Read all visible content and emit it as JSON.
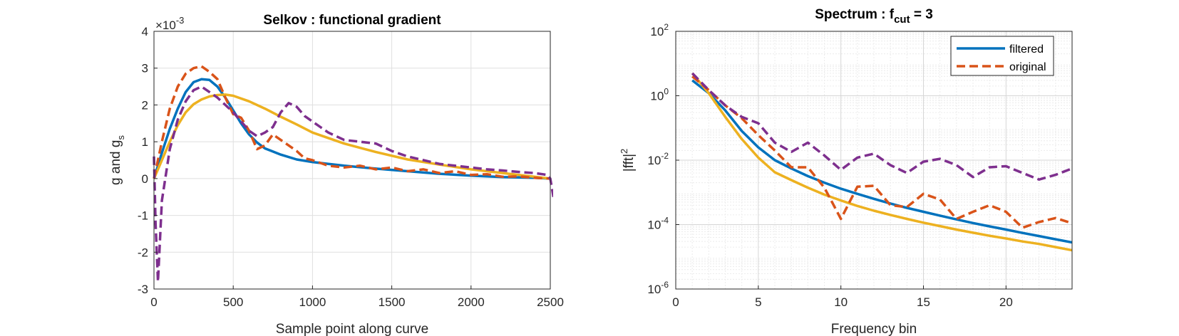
{
  "chart_data": [
    {
      "type": "line",
      "title": "Selkov : functional gradient",
      "xlabel": "Sample point along curve",
      "ylabel_main": "g and g",
      "ylabel_sub": "s",
      "exponent_prefix": "×10",
      "exponent": "-3",
      "xlim": [
        0,
        2500
      ],
      "ylim": [
        -3,
        4
      ],
      "xticks": [
        0,
        500,
        1000,
        1500,
        2000,
        2500
      ],
      "yticks": [
        -3,
        -2,
        -1,
        0,
        1,
        2,
        3,
        4
      ],
      "grid": true,
      "series": [
        {
          "color": "#0072BD",
          "style": "solid",
          "width": 3.5,
          "x": [
            0,
            50,
            100,
            150,
            200,
            250,
            300,
            350,
            400,
            450,
            500,
            550,
            600,
            650,
            700,
            800,
            900,
            1000,
            1100,
            1200,
            1400,
            1600,
            1800,
            2000,
            2200,
            2400,
            2450,
            2500
          ],
          "y": [
            0.0,
            0.7,
            1.35,
            1.9,
            2.35,
            2.62,
            2.7,
            2.68,
            2.5,
            2.2,
            1.85,
            1.5,
            1.2,
            0.98,
            0.82,
            0.65,
            0.52,
            0.45,
            0.4,
            0.35,
            0.27,
            0.2,
            0.13,
            0.08,
            0.04,
            0.02,
            0.01,
            0.0
          ]
        },
        {
          "color": "#EDB120",
          "style": "solid",
          "width": 3.5,
          "x": [
            0,
            50,
            100,
            150,
            200,
            250,
            300,
            350,
            400,
            450,
            500,
            600,
            700,
            800,
            900,
            1000,
            1200,
            1400,
            1600,
            1800,
            2000,
            2200,
            2400,
            2500
          ],
          "y": [
            0.0,
            0.5,
            1.0,
            1.45,
            1.8,
            2.02,
            2.15,
            2.23,
            2.27,
            2.28,
            2.25,
            2.1,
            1.9,
            1.68,
            1.47,
            1.25,
            0.95,
            0.72,
            0.52,
            0.38,
            0.25,
            0.15,
            0.05,
            0.0
          ]
        },
        {
          "color": "#D95319",
          "style": "dashed",
          "width": 3.5,
          "x": [
            0,
            50,
            100,
            150,
            200,
            250,
            300,
            350,
            400,
            450,
            500,
            550,
            600,
            650,
            700,
            750,
            800,
            850,
            900,
            950,
            1000,
            1100,
            1200,
            1300,
            1400,
            1500,
            1600,
            1700,
            1800,
            1900,
            2000,
            2100,
            2200,
            2300,
            2400,
            2500
          ],
          "y": [
            0.0,
            1.0,
            1.9,
            2.5,
            2.85,
            3.0,
            3.05,
            2.9,
            2.7,
            2.2,
            1.75,
            1.65,
            1.3,
            0.8,
            0.9,
            1.2,
            1.05,
            0.9,
            0.75,
            0.55,
            0.5,
            0.35,
            0.3,
            0.35,
            0.25,
            0.3,
            0.2,
            0.25,
            0.15,
            0.2,
            0.1,
            0.12,
            0.05,
            0.06,
            0.02,
            0.0
          ]
        },
        {
          "color": "#7E2F8E",
          "style": "dashed",
          "width": 3.5,
          "x": [
            0,
            10,
            25,
            50,
            100,
            150,
            200,
            250,
            300,
            350,
            400,
            450,
            500,
            550,
            600,
            650,
            700,
            750,
            800,
            850,
            900,
            950,
            1000,
            1050,
            1100,
            1200,
            1300,
            1400,
            1500,
            1600,
            1700,
            1800,
            1900,
            2000,
            2100,
            2200,
            2300,
            2400,
            2480,
            2500,
            2520
          ],
          "y": [
            0.6,
            -1.2,
            -2.8,
            -0.6,
            0.8,
            1.6,
            2.1,
            2.4,
            2.5,
            2.35,
            2.2,
            2.0,
            1.8,
            1.55,
            1.3,
            1.15,
            1.25,
            1.4,
            1.8,
            2.05,
            1.95,
            1.7,
            1.55,
            1.4,
            1.25,
            1.05,
            1.0,
            0.95,
            0.75,
            0.6,
            0.5,
            0.4,
            0.35,
            0.3,
            0.25,
            0.22,
            0.18,
            0.15,
            0.1,
            0.0,
            -0.5
          ]
        }
      ]
    },
    {
      "type": "line",
      "title_main": "Spectrum : f",
      "title_sub": "cut",
      "title_rest": " = 3",
      "xlabel": "Frequency bin",
      "ylabel_main": "|fft|",
      "ylabel_sup": "2",
      "xlim": [
        0,
        24
      ],
      "ylim": [
        1e-06,
        100
      ],
      "yscale": "log",
      "xticks": [
        0,
        5,
        10,
        15,
        20
      ],
      "ytick_exponents": [
        2,
        0,
        -2,
        -4,
        -6
      ],
      "grid": true,
      "legend_position": "top-right",
      "legend": [
        {
          "label": "filtered",
          "color": "#0072BD",
          "style": "solid"
        },
        {
          "label": "original",
          "color": "#D95319",
          "style": "dashed"
        }
      ],
      "series": [
        {
          "color": "#0072BD",
          "style": "solid",
          "width": 3.5,
          "x": [
            1,
            2,
            3,
            4,
            5,
            6,
            7,
            8,
            9,
            10,
            11,
            12,
            13,
            14,
            15,
            16,
            17,
            18,
            19,
            20,
            21,
            22,
            23,
            24
          ],
          "y": [
            3.0,
            1.2,
            0.35,
            0.08,
            0.025,
            0.01,
            0.0055,
            0.0032,
            0.002,
            0.0013,
            0.0009,
            0.00063,
            0.00045,
            0.00033,
            0.00025,
            0.00019,
            0.000145,
            0.000112,
            8.8e-05,
            7e-05,
            5.5e-05,
            4.4e-05,
            3.5e-05,
            2.8e-05
          ]
        },
        {
          "color": "#EDB120",
          "style": "solid",
          "width": 3.5,
          "x": [
            1,
            2,
            3,
            4,
            5,
            6,
            7,
            8,
            9,
            10,
            11,
            12,
            13,
            14,
            15,
            16,
            17,
            18,
            19,
            20,
            21,
            22,
            23,
            24
          ],
          "y": [
            5.0,
            1.2,
            0.22,
            0.045,
            0.012,
            0.0042,
            0.0024,
            0.0014,
            0.00085,
            0.00056,
            0.00038,
            0.00027,
            0.0002,
            0.00015,
            0.000115,
            9e-05,
            7e-05,
            5.6e-05,
            4.5e-05,
            3.7e-05,
            3e-05,
            2.5e-05,
            2e-05,
            1.6e-05
          ]
        },
        {
          "color": "#D95319",
          "style": "dashed",
          "width": 3.5,
          "x": [
            1,
            2,
            3,
            4,
            5,
            6,
            7,
            8,
            9,
            10,
            11,
            12,
            13,
            14,
            15,
            16,
            17,
            18,
            19,
            20,
            21,
            22,
            23,
            24
          ],
          "y": [
            4.0,
            1.5,
            0.5,
            0.2,
            0.06,
            0.02,
            0.006,
            0.006,
            0.0014,
            0.00015,
            0.0015,
            0.0016,
            0.0004,
            0.00035,
            0.0009,
            0.0006,
            0.00015,
            0.00025,
            0.0004,
            0.00025,
            8e-05,
            0.00012,
            0.00016,
            0.00011
          ]
        },
        {
          "color": "#7E2F8E",
          "style": "dashed",
          "width": 3.5,
          "x": [
            1,
            2,
            3,
            4,
            5,
            6,
            7,
            8,
            9,
            10,
            11,
            12,
            13,
            14,
            15,
            16,
            17,
            18,
            19,
            20,
            21,
            22,
            23,
            24
          ],
          "y": [
            5.0,
            1.5,
            0.5,
            0.22,
            0.14,
            0.035,
            0.018,
            0.035,
            0.014,
            0.005,
            0.012,
            0.016,
            0.007,
            0.004,
            0.009,
            0.011,
            0.007,
            0.003,
            0.006,
            0.0065,
            0.004,
            0.0025,
            0.0035,
            0.0055
          ]
        }
      ]
    }
  ]
}
